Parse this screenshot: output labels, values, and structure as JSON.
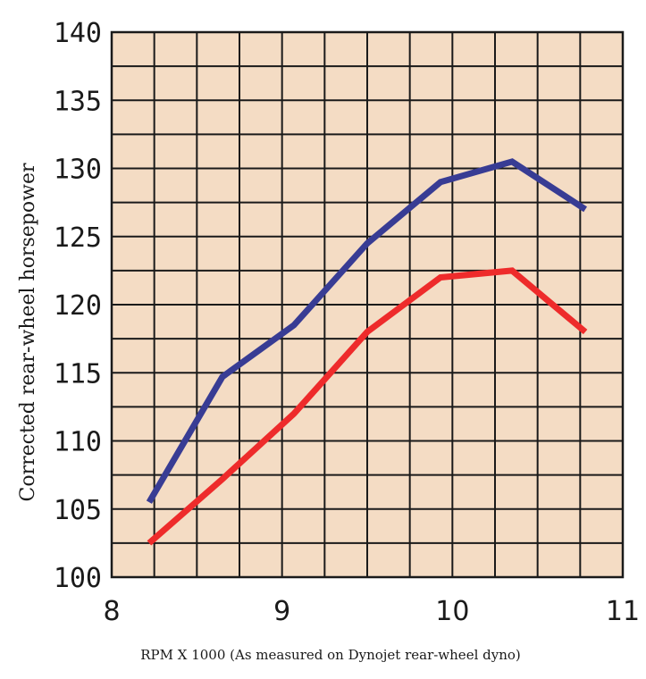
{
  "chart_data": {
    "type": "line",
    "title": "",
    "xlabel": "RPM X 1000 (As measured on Dynojet rear-wheel dyno)",
    "ylabel": "Corrected rear-wheel horsepower",
    "xlim": [
      8,
      11
    ],
    "ylim": [
      100,
      140
    ],
    "x_ticks": [
      8,
      9,
      10,
      11
    ],
    "x_tick_labels": [
      "8",
      "9",
      "10",
      "11"
    ],
    "y_ticks": [
      100,
      105,
      110,
      115,
      120,
      125,
      130,
      135,
      140
    ],
    "y_tick_labels": [
      "100",
      "105",
      "110",
      "115",
      "120",
      "125",
      "130",
      "135",
      "140"
    ],
    "x_minor_step": 0.25,
    "y_minor_step": 2.5,
    "grid": true,
    "background_color": "#f4dcc4",
    "series": [
      {
        "name": "blue",
        "color": "#383c94",
        "x": [
          8.22,
          8.65,
          9.07,
          9.5,
          9.93,
          10.35,
          10.78
        ],
        "y": [
          105.5,
          114.7,
          118.5,
          124.5,
          129.0,
          130.5,
          127.0
        ]
      },
      {
        "name": "red",
        "color": "#ee2b2b",
        "x": [
          8.22,
          8.65,
          9.07,
          9.5,
          9.93,
          10.35,
          10.78
        ],
        "y": [
          102.5,
          107.2,
          112.0,
          118.0,
          122.0,
          122.5,
          118.0
        ]
      }
    ]
  }
}
